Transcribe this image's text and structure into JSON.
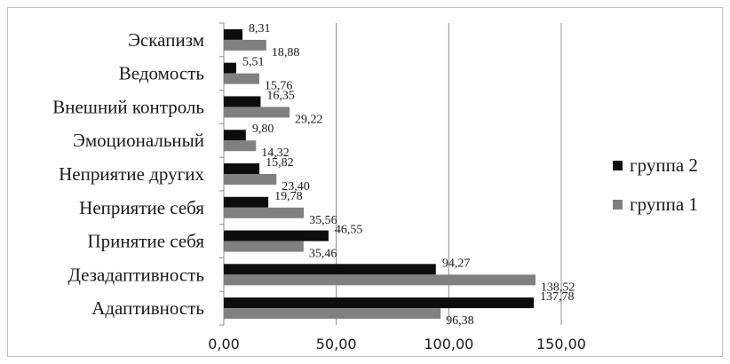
{
  "chart_data": {
    "type": "bar",
    "orientation": "horizontal",
    "categories": [
      "Адаптивность",
      "Дезадаптивность",
      "Принятие себя",
      "Неприятие себя",
      "Неприятие других",
      "Эмоциональный",
      "Внешний контроль",
      "Ведомость",
      "Эскапизм"
    ],
    "series": [
      {
        "name": "группа 2",
        "color": "#0d0d0d",
        "values": [
          137.78,
          94.27,
          46.55,
          19.78,
          15.82,
          9.8,
          16.35,
          5.51,
          8.31
        ],
        "labels": [
          "137,78",
          "94,27",
          "46,55",
          "19,78",
          "15,82",
          "9,80",
          "16,35",
          "5,51",
          "8,31"
        ]
      },
      {
        "name": "группа 1",
        "color": "#808080",
        "values": [
          96.38,
          138.52,
          35.46,
          35.56,
          23.4,
          14.32,
          29.22,
          15.76,
          18.88
        ],
        "labels": [
          "96,38",
          "138,52",
          "35,46",
          "35,56",
          "23,40",
          "14,32",
          "29,22",
          "15,76",
          "18,88"
        ]
      }
    ],
    "xlim": [
      0,
      150
    ],
    "xticks": [
      0,
      50,
      100,
      150
    ],
    "xtick_labels": [
      "0,00",
      "50,00",
      "100,00",
      "150,00"
    ],
    "grid": "vertical",
    "legend_position": "right",
    "title": "",
    "xlabel": "",
    "ylabel": ""
  }
}
